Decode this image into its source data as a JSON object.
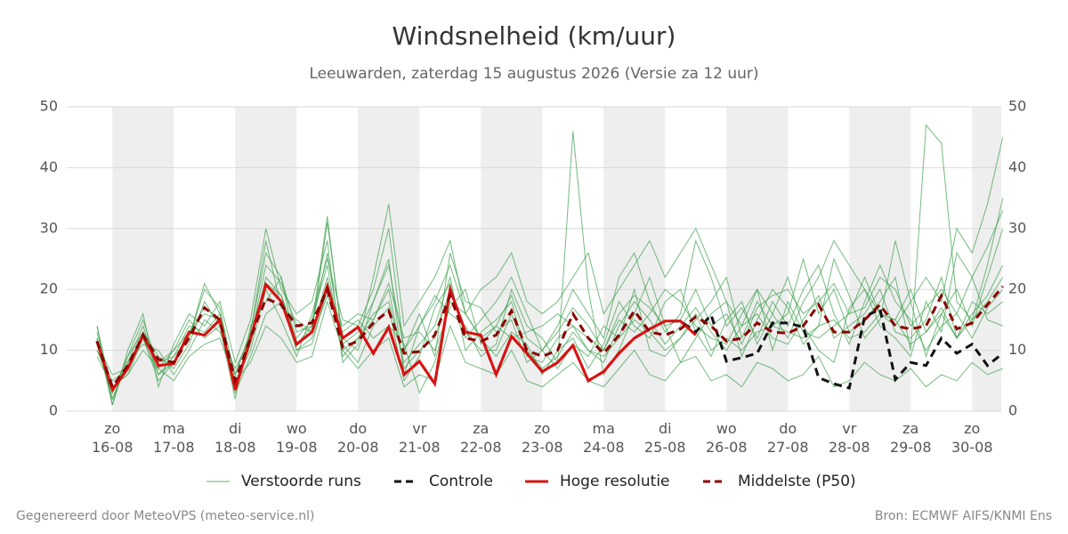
{
  "chart_data": {
    "type": "line",
    "title": "Windsnelheid (km/uur)",
    "subtitle": "Leeuwarden, zaterdag 15 augustus 2026 (Versie za 12 uur)",
    "footer_left": "Gegenereerd door MeteoVPS (meteo-service.nl)",
    "footer_right": "Bron: ECMWF AIFS/KNMI Ens",
    "categories": [
      null,
      "zo 16-08",
      null,
      null,
      null,
      "ma 17-08",
      null,
      null,
      null,
      "di 18-08",
      null,
      null,
      null,
      "wo 19-08",
      null,
      null,
      null,
      "do 20-08",
      null,
      null,
      null,
      "vr 21-08",
      null,
      null,
      null,
      "za 22-08",
      null,
      null,
      null,
      "zo 23-08",
      null,
      null,
      null,
      "ma 24-08",
      null,
      null,
      null,
      "di 25-08",
      null,
      null,
      null,
      "wo 26-08",
      null,
      null,
      null,
      "do 27-08",
      null,
      null,
      null,
      "vr 28-08",
      null,
      null,
      null,
      "za 29-08",
      null,
      null,
      null,
      "zo 30-08",
      null,
      null
    ],
    "ylim": [
      0,
      50
    ],
    "yticks": [
      0,
      10,
      20,
      30,
      40,
      50
    ],
    "grid": true,
    "series": [
      {
        "name": "Verstoorde runs",
        "color": "#3a9e4a",
        "members": [
          [
            12,
            2,
            8,
            14,
            6,
            9,
            14,
            13,
            16,
            4,
            11,
            22,
            19,
            12,
            15,
            24,
            9,
            12,
            16,
            18,
            8,
            11,
            14,
            22,
            10,
            13,
            15,
            18,
            9,
            8,
            12,
            14,
            10,
            8,
            14,
            18,
            15,
            11,
            14,
            17,
            13,
            10,
            14,
            16,
            12,
            11,
            15,
            19,
            12,
            14,
            16,
            20,
            13,
            12,
            15,
            22,
            12,
            16,
            19,
            24
          ],
          [
            10,
            5,
            7,
            13,
            9,
            7,
            11,
            18,
            14,
            6,
            13,
            28,
            17,
            15,
            13,
            31,
            12,
            10,
            18,
            25,
            6,
            14,
            19,
            16,
            14,
            9,
            11,
            20,
            14,
            12,
            8,
            46,
            20,
            6,
            10,
            16,
            22,
            14,
            8,
            12,
            16,
            18,
            9,
            15,
            20,
            17,
            11,
            14,
            25,
            19,
            12,
            15,
            28,
            18,
            9,
            16,
            20,
            14,
            22,
            30
          ],
          [
            14,
            1,
            9,
            15,
            7,
            10,
            15,
            12,
            14,
            2,
            14,
            18,
            22,
            10,
            12,
            19,
            13,
            15,
            12,
            14,
            11,
            3,
            8,
            18,
            16,
            12,
            9,
            13,
            11,
            6,
            10,
            12,
            7,
            11,
            18,
            14,
            12,
            18,
            20,
            13,
            9,
            15,
            18,
            11,
            16,
            22,
            14,
            10,
            8,
            17,
            20,
            14,
            12,
            9,
            18,
            13,
            26,
            22,
            15,
            14
          ],
          [
            9,
            4,
            6,
            12,
            5,
            8,
            12,
            20,
            17,
            5,
            10,
            20,
            15,
            9,
            16,
            25,
            15,
            14,
            20,
            30,
            10,
            16,
            9,
            26,
            18,
            17,
            13,
            15,
            8,
            10,
            14,
            20,
            16,
            12,
            22,
            26,
            18,
            13,
            16,
            28,
            22,
            14,
            17,
            12,
            18,
            14,
            20,
            24,
            16,
            11,
            18,
            24,
            18,
            15,
            10,
            14,
            16,
            12,
            17,
            20
          ],
          [
            13,
            3,
            8,
            11,
            10,
            6,
            10,
            15,
            13,
            7,
            12,
            24,
            21,
            14,
            13,
            22,
            11,
            8,
            14,
            17,
            5,
            9,
            17,
            21,
            12,
            15,
            18,
            22,
            16,
            10,
            7,
            11,
            9,
            14,
            12,
            20,
            10,
            9,
            12,
            15,
            18,
            22,
            12,
            18,
            14,
            16,
            25,
            16,
            20,
            13,
            15,
            18,
            22,
            10,
            47,
            44,
            18,
            15,
            24,
            35
          ],
          [
            11,
            6,
            7,
            13,
            8,
            10,
            13,
            16,
            15,
            3,
            9,
            16,
            18,
            10,
            11,
            20,
            14,
            16,
            15,
            21,
            12,
            13,
            10,
            17,
            20,
            11,
            14,
            12,
            13,
            14,
            16,
            14,
            12,
            10,
            15,
            13,
            16,
            20,
            18,
            14,
            12,
            11,
            16,
            20,
            10,
            18,
            13,
            12,
            14,
            16,
            22,
            16,
            15,
            20,
            13,
            17,
            12,
            18,
            16,
            18
          ],
          [
            12,
            1,
            10,
            16,
            4,
            11,
            16,
            14,
            18,
            8,
            15,
            30,
            20,
            16,
            18,
            28,
            8,
            11,
            22,
            34,
            14,
            18,
            22,
            28,
            16,
            20,
            22,
            26,
            18,
            16,
            18,
            22,
            26,
            16,
            20,
            24,
            28,
            22,
            26,
            30,
            24,
            18,
            14,
            20,
            16,
            12,
            18,
            22,
            28,
            24,
            20,
            16,
            14,
            18,
            22,
            18,
            30,
            26,
            34,
            45
          ],
          [
            10,
            4,
            6,
            10,
            7,
            5,
            9,
            11,
            12,
            5,
            8,
            14,
            12,
            8,
            9,
            18,
            10,
            7,
            10,
            12,
            4,
            6,
            5,
            14,
            8,
            7,
            6,
            10,
            5,
            4,
            6,
            8,
            5,
            4,
            7,
            10,
            6,
            5,
            8,
            9,
            5,
            6,
            4,
            8,
            7,
            5,
            6,
            9,
            4,
            5,
            8,
            6,
            5,
            7,
            4,
            6,
            5,
            8,
            6,
            7
          ],
          [
            14,
            3,
            9,
            13,
            8,
            9,
            12,
            21,
            16,
            6,
            13,
            26,
            22,
            13,
            14,
            32,
            11,
            13,
            18,
            24,
            10,
            14,
            18,
            24,
            16,
            12,
            14,
            19,
            12,
            10,
            13,
            17,
            14,
            10,
            16,
            19,
            17,
            14,
            15,
            20,
            14,
            16,
            11,
            17,
            19,
            20,
            16,
            18,
            21,
            16,
            17,
            22,
            20,
            14,
            17,
            20,
            16,
            22,
            27,
            33
          ],
          [
            11,
            2,
            8,
            12,
            6,
            8,
            13,
            17,
            15,
            4,
            12,
            21,
            19,
            11,
            14,
            26,
            10,
            12,
            15,
            20,
            7,
            10,
            12,
            20,
            13,
            10,
            10,
            16,
            10,
            7,
            9,
            13,
            10,
            9,
            12,
            15,
            13,
            10,
            12,
            16,
            10,
            12,
            10,
            13,
            14,
            13,
            12,
            14,
            15,
            12,
            13,
            16,
            15,
            11,
            13,
            16,
            12,
            15,
            18,
            22
          ]
        ]
      },
      {
        "name": "Controle",
        "color": "#111111",
        "dash": true,
        "values": [
          11.5,
          3.5,
          7,
          12.5,
          7.5,
          7.8,
          13,
          12.5,
          15,
          3.5,
          12,
          20.8,
          18,
          11,
          13,
          20.5,
          12,
          13.8,
          9.5,
          13.8,
          6,
          8.2,
          4.5,
          20,
          13,
          12.5,
          6,
          12.3,
          9.5,
          6.5,
          8,
          10.8,
          5,
          6.5,
          9.5,
          12,
          13.5,
          14.8,
          14.8,
          13,
          15.8,
          8.2,
          8.8,
          9.5,
          14.5,
          14.5,
          13.8,
          5.5,
          4.5,
          3.8,
          15.5,
          16.8,
          5.2,
          8,
          7.5,
          12,
          9.5,
          11,
          7.5,
          9.5
        ]
      },
      {
        "name": "Hoge resolutie",
        "color": "#dd1111",
        "values": [
          11.5,
          3.5,
          7,
          12.5,
          7.5,
          7.8,
          13,
          12.5,
          15,
          3.5,
          12,
          20.8,
          18,
          11,
          13,
          20.5,
          12,
          13.8,
          9.5,
          13.8,
          6,
          8.2,
          4.5,
          20,
          13,
          12.5,
          6,
          12.3,
          9.5,
          6.5,
          8,
          10.8,
          5,
          6.5,
          9.5,
          12,
          13.5,
          14.8,
          14.8,
          12.5,
          null,
          null,
          null,
          null,
          null,
          null,
          null,
          null,
          null,
          null,
          null,
          null,
          null,
          null,
          null,
          null,
          null,
          null,
          null,
          null
        ]
      },
      {
        "name": "Middelste (P50)",
        "color": "#8b0000",
        "dash": true,
        "values": [
          11.5,
          4,
          7.5,
          12.5,
          8.5,
          8,
          12,
          17,
          15,
          5,
          12,
          18.5,
          17.5,
          14,
          14.5,
          20,
          10.5,
          11.5,
          14.5,
          16.5,
          9.5,
          9.8,
          12.5,
          19,
          12,
          11.5,
          12.5,
          16.5,
          10,
          9,
          10,
          16,
          12,
          9.5,
          12.5,
          16.5,
          13,
          12.5,
          13.5,
          15.5,
          14,
          11.5,
          12,
          14.5,
          13,
          12.8,
          14,
          17.5,
          13,
          13,
          15,
          17.5,
          14,
          13.5,
          14,
          19,
          13.5,
          14.5,
          17.5,
          20.5
        ]
      }
    ]
  }
}
